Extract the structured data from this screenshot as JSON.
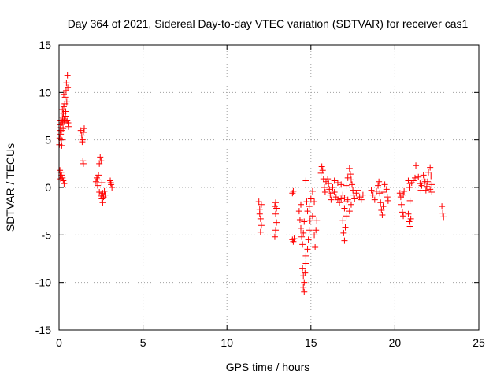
{
  "chart_data": {
    "type": "scatter",
    "title": "Day 364 of 2021, Sidereal Day-to-day VTEC variation (SDTVAR) for receiver cas1",
    "xlabel": "GPS time / hours",
    "ylabel": "SDTVAR / TECUs",
    "xlim": [
      0,
      25
    ],
    "ylim": [
      -15,
      15
    ],
    "xticks": [
      0,
      5,
      10,
      15,
      20,
      25
    ],
    "yticks": [
      -15,
      -10,
      -5,
      0,
      5,
      10,
      15
    ],
    "grid": true,
    "marker": "plus",
    "color": "#ff0000",
    "series": [
      {
        "name": "SDTVAR",
        "points": [
          [
            0.02,
            4.5
          ],
          [
            0.04,
            5.2
          ],
          [
            0.06,
            6.0
          ],
          [
            0.08,
            6.6
          ],
          [
            0.1,
            7.0
          ],
          [
            0.12,
            6.3
          ],
          [
            0.14,
            5.0
          ],
          [
            0.16,
            4.4
          ],
          [
            0.18,
            6.8
          ],
          [
            0.2,
            7.4
          ],
          [
            0.22,
            7.0
          ],
          [
            0.24,
            6.2
          ],
          [
            0.26,
            7.8
          ],
          [
            0.28,
            8.5
          ],
          [
            0.3,
            7.2
          ],
          [
            0.32,
            6.9
          ],
          [
            0.34,
            8.8
          ],
          [
            0.36,
            9.5
          ],
          [
            0.38,
            7.5
          ],
          [
            0.4,
            8.0
          ],
          [
            0.42,
            10.2
          ],
          [
            0.44,
            11.0
          ],
          [
            0.46,
            9.0
          ],
          [
            0.48,
            7.0
          ],
          [
            0.5,
            11.8
          ],
          [
            0.52,
            10.5
          ],
          [
            0.54,
            6.8
          ],
          [
            0.56,
            6.4
          ],
          [
            0.2,
            8.2
          ],
          [
            0.28,
            9.8
          ],
          [
            0.1,
            5.6
          ],
          [
            0.14,
            6.0
          ],
          [
            0.05,
            1.8
          ],
          [
            0.07,
            1.2
          ],
          [
            0.1,
            0.9
          ],
          [
            0.15,
            1.3
          ],
          [
            0.2,
            1.0
          ],
          [
            0.25,
            0.7
          ],
          [
            0.3,
            0.4
          ],
          [
            0.12,
            1.6
          ],
          [
            1.3,
            6.0
          ],
          [
            1.35,
            5.5
          ],
          [
            1.4,
            5.0
          ],
          [
            1.45,
            5.8
          ],
          [
            1.5,
            6.2
          ],
          [
            1.38,
            4.8
          ],
          [
            1.42,
            2.8
          ],
          [
            1.45,
            2.5
          ],
          [
            2.2,
            0.6
          ],
          [
            2.25,
            1.0
          ],
          [
            2.3,
            0.8
          ],
          [
            2.35,
            1.3
          ],
          [
            2.4,
            2.5
          ],
          [
            2.45,
            3.2
          ],
          [
            2.5,
            2.8
          ],
          [
            2.55,
            0.5
          ],
          [
            2.3,
            0.2
          ],
          [
            2.4,
            -0.5
          ],
          [
            2.5,
            -0.9
          ],
          [
            2.55,
            -1.2
          ],
          [
            2.6,
            -1.6
          ],
          [
            2.65,
            -1.0
          ],
          [
            2.7,
            -0.4
          ],
          [
            2.75,
            -0.8
          ],
          [
            2.6,
            -0.6
          ],
          [
            3.05,
            0.7
          ],
          [
            3.1,
            0.3
          ],
          [
            3.15,
            0.0
          ],
          [
            3.08,
            0.5
          ],
          [
            11.9,
            -1.5
          ],
          [
            11.95,
            -2.3
          ],
          [
            12.0,
            -3.3
          ],
          [
            12.05,
            -4.0
          ],
          [
            12.0,
            -4.7
          ],
          [
            11.95,
            -2.8
          ],
          [
            12.05,
            -1.8
          ],
          [
            12.85,
            -2.0
          ],
          [
            12.9,
            -2.8
          ],
          [
            12.95,
            -3.7
          ],
          [
            12.9,
            -4.5
          ],
          [
            12.85,
            -5.2
          ],
          [
            12.95,
            -2.2
          ],
          [
            12.9,
            -1.6
          ],
          [
            13.9,
            -0.6
          ],
          [
            13.95,
            -0.4
          ],
          [
            14.0,
            -5.4
          ],
          [
            13.95,
            -5.7
          ],
          [
            13.9,
            -5.5
          ],
          [
            14.3,
            -2.5
          ],
          [
            14.35,
            -3.4
          ],
          [
            14.4,
            -4.3
          ],
          [
            14.45,
            -5.2
          ],
          [
            14.5,
            -6.0
          ],
          [
            14.55,
            -4.8
          ],
          [
            14.6,
            -3.6
          ],
          [
            14.4,
            -1.8
          ],
          [
            14.5,
            -8.5
          ],
          [
            14.55,
            -9.3
          ],
          [
            14.6,
            -10.0
          ],
          [
            14.55,
            -10.5
          ],
          [
            14.6,
            -11.0
          ],
          [
            14.65,
            -9.0
          ],
          [
            14.7,
            -8.0
          ],
          [
            14.7,
            -7.2
          ],
          [
            14.8,
            -6.5
          ],
          [
            14.85,
            -5.5
          ],
          [
            14.9,
            -4.5
          ],
          [
            14.95,
            -3.5
          ],
          [
            14.8,
            -2.5
          ],
          [
            14.75,
            -1.5
          ],
          [
            14.7,
            0.7
          ],
          [
            14.9,
            -2.0
          ],
          [
            15.0,
            -1.2
          ],
          [
            15.1,
            -3.0
          ],
          [
            15.2,
            -5.0
          ],
          [
            15.25,
            -6.3
          ],
          [
            15.3,
            -4.5
          ],
          [
            15.35,
            -3.5
          ],
          [
            15.2,
            -1.5
          ],
          [
            15.1,
            -0.4
          ],
          [
            15.6,
            1.5
          ],
          [
            15.65,
            2.2
          ],
          [
            15.7,
            1.8
          ],
          [
            15.75,
            0.9
          ],
          [
            15.8,
            0.0
          ],
          [
            15.85,
            -0.5
          ],
          [
            15.9,
            0.6
          ],
          [
            16.0,
            0.9
          ],
          [
            16.05,
            0.4
          ],
          [
            16.1,
            -0.2
          ],
          [
            16.15,
            -0.8
          ],
          [
            16.2,
            -1.3
          ],
          [
            16.25,
            -0.6
          ],
          [
            16.3,
            0.0
          ],
          [
            16.4,
            -0.5
          ],
          [
            16.5,
            -1.0
          ],
          [
            16.6,
            -1.3
          ],
          [
            16.7,
            -1.6
          ],
          [
            16.8,
            -1.2
          ],
          [
            16.9,
            -0.8
          ],
          [
            17.0,
            -1.1
          ],
          [
            17.1,
            -1.5
          ],
          [
            17.2,
            -1.3
          ],
          [
            16.4,
            0.7
          ],
          [
            16.6,
            0.5
          ],
          [
            16.8,
            0.3
          ],
          [
            16.9,
            -3.5
          ],
          [
            16.95,
            -4.8
          ],
          [
            17.0,
            -5.6
          ],
          [
            17.05,
            -4.2
          ],
          [
            17.1,
            -3.0
          ],
          [
            17.0,
            -2.2
          ],
          [
            17.1,
            0.2
          ],
          [
            17.2,
            1.0
          ],
          [
            17.3,
            2.0
          ],
          [
            17.35,
            1.4
          ],
          [
            17.4,
            0.8
          ],
          [
            17.45,
            0.3
          ],
          [
            17.5,
            -0.3
          ],
          [
            17.55,
            -0.8
          ],
          [
            17.6,
            -1.2
          ],
          [
            17.7,
            -0.6
          ],
          [
            17.8,
            -0.3
          ],
          [
            17.9,
            -1.0
          ],
          [
            18.0,
            -1.3
          ],
          [
            18.1,
            -0.8
          ],
          [
            17.3,
            -2.5
          ],
          [
            17.4,
            -1.8
          ],
          [
            18.6,
            -0.3
          ],
          [
            18.7,
            -0.8
          ],
          [
            18.8,
            -1.3
          ],
          [
            18.9,
            -0.4
          ],
          [
            19.0,
            0.2
          ],
          [
            19.05,
            0.6
          ],
          [
            19.1,
            -0.6
          ],
          [
            19.15,
            -1.6
          ],
          [
            19.2,
            -2.4
          ],
          [
            19.25,
            -2.9
          ],
          [
            19.3,
            -2.0
          ],
          [
            19.35,
            -0.5
          ],
          [
            19.4,
            0.3
          ],
          [
            19.5,
            -0.2
          ],
          [
            19.55,
            -1.0
          ],
          [
            19.6,
            -1.4
          ],
          [
            20.3,
            -0.6
          ],
          [
            20.35,
            -1.0
          ],
          [
            20.4,
            -1.8
          ],
          [
            20.45,
            -2.6
          ],
          [
            20.5,
            -3.0
          ],
          [
            20.55,
            -0.4
          ],
          [
            20.5,
            -0.8
          ],
          [
            20.8,
            -2.8
          ],
          [
            20.85,
            -3.6
          ],
          [
            20.9,
            -4.1
          ],
          [
            20.95,
            -3.3
          ],
          [
            20.9,
            -1.4
          ],
          [
            20.85,
            0.0
          ],
          [
            20.8,
            0.7
          ],
          [
            20.9,
            0.4
          ],
          [
            21.0,
            0.5
          ],
          [
            21.1,
            0.7
          ],
          [
            21.2,
            1.0
          ],
          [
            21.25,
            2.3
          ],
          [
            21.4,
            1.1
          ],
          [
            21.5,
            0.4
          ],
          [
            21.55,
            -0.3
          ],
          [
            21.6,
            0.2
          ],
          [
            21.7,
            1.3
          ],
          [
            21.75,
            0.8
          ],
          [
            21.8,
            0.6
          ],
          [
            21.85,
            -0.3
          ],
          [
            21.9,
            0.1
          ],
          [
            21.95,
            0.6
          ],
          [
            22.0,
            1.6
          ],
          [
            22.1,
            2.1
          ],
          [
            22.15,
            1.2
          ],
          [
            22.2,
            0.3
          ],
          [
            22.2,
            -0.5
          ],
          [
            22.1,
            -0.2
          ],
          [
            22.8,
            -2.0
          ],
          [
            22.85,
            -2.7
          ],
          [
            22.9,
            -3.1
          ]
        ]
      }
    ]
  }
}
